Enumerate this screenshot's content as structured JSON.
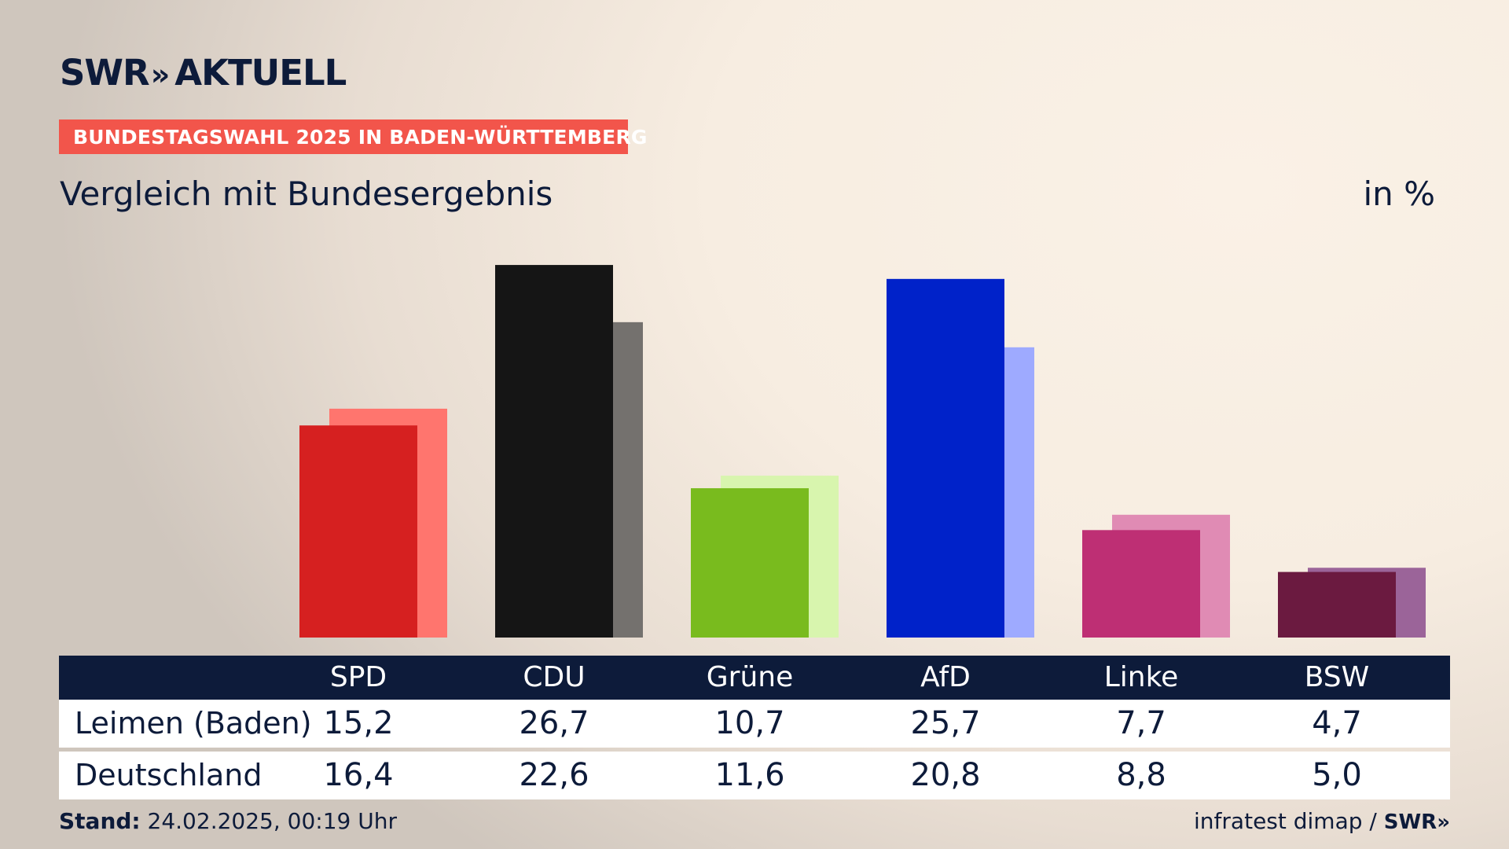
{
  "header": {
    "logo_text": "SWR",
    "logo_chevrons": "»",
    "logo_suffix": "AKTUELL",
    "banner": "BUNDESTAGSWAHL 2025 IN BADEN-WÜRTTEMBERG",
    "subtitle": "Vergleich mit Bundesergebnis",
    "unit": "in %"
  },
  "table": {
    "rows": [
      {
        "label": "Leimen (Baden)",
        "values": [
          "15,2",
          "26,7",
          "10,7",
          "25,7",
          "7,7",
          "4,7"
        ]
      },
      {
        "label": "Deutschland",
        "values": [
          "16,4",
          "22,6",
          "11,6",
          "20,8",
          "8,8",
          "5,0"
        ]
      }
    ]
  },
  "footer": {
    "stand_label": "Stand:",
    "stand_value": "24.02.2025, 00:19 Uhr",
    "source": "infratest dimap /",
    "brand": "SWR»"
  },
  "chart_data": {
    "type": "bar",
    "title": "Vergleich mit Bundesergebnis",
    "ylabel": "in %",
    "categories": [
      "SPD",
      "CDU",
      "Grüne",
      "AfD",
      "Linke",
      "BSW"
    ],
    "series": [
      {
        "name": "Leimen (Baden)",
        "values": [
          15.2,
          26.7,
          10.7,
          25.7,
          7.7,
          4.7
        ]
      },
      {
        "name": "Deutschland",
        "values": [
          16.4,
          22.6,
          11.6,
          20.8,
          8.8,
          5.0
        ]
      }
    ],
    "colors": {
      "primary": [
        "#d62020",
        "#151515",
        "#79bb1e",
        "#0022c9",
        "#be2f74",
        "#6b1a40"
      ],
      "secondary": [
        "#ff756e",
        "#74716e",
        "#d8f5ae",
        "#9eaaff",
        "#e08bb4",
        "#9b6499"
      ]
    },
    "ylim": [
      0,
      27
    ],
    "grid": false,
    "legend": "table-bottom"
  },
  "colors": {
    "navy": "#0d1b3a",
    "banner": "#f2554b"
  }
}
